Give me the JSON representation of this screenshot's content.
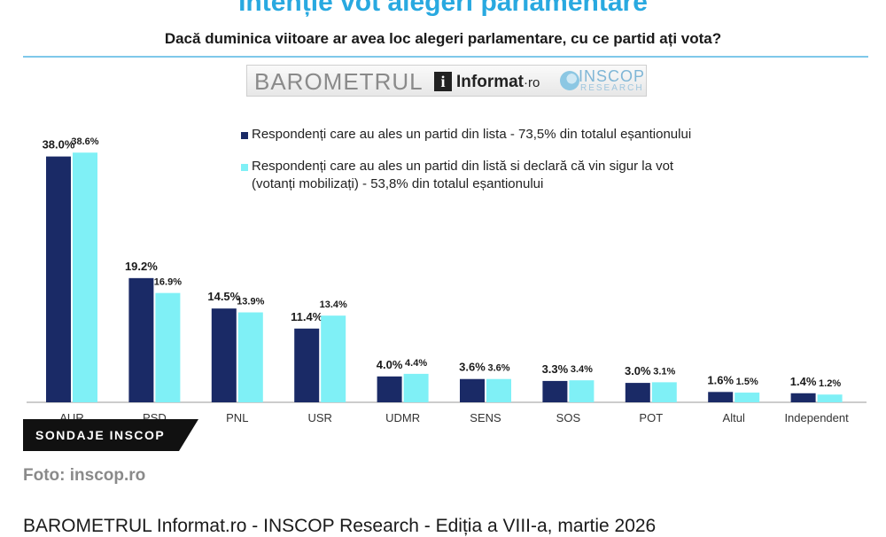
{
  "header": {
    "title": "Intenție vot alegeri parlamentare",
    "subtitle": "Dacă duminica viitoare ar avea loc alegeri parlamentare, cu ce partid ați vota?"
  },
  "logos": {
    "barometrul": "BAROMETRUL",
    "informat": "Informat",
    "informat_suffix": "·ro",
    "inscop": "INSCOP",
    "research": "RESEARCH"
  },
  "colors": {
    "series1": "#1a2a66",
    "series2": "#7ff0f6",
    "title": "#29a9e0"
  },
  "chart_data": {
    "type": "bar",
    "categories": [
      "AUR",
      "PSD",
      "PNL",
      "USR",
      "UDMR",
      "SENS",
      "SOS",
      "POT",
      "Altul",
      "Independent"
    ],
    "series": [
      {
        "name": "Respondenți care au ales un partid din lista - 73,5% din totalul eșantionului",
        "values": [
          38.0,
          19.2,
          14.5,
          11.4,
          4.0,
          3.6,
          3.3,
          3.0,
          1.6,
          1.4
        ],
        "labels": [
          "38.0%",
          "19.2%",
          "14.5%",
          "11.4%",
          "4.0%",
          "3.6%",
          "3.3%",
          "3.0%",
          "1.6%",
          "1.4%"
        ]
      },
      {
        "name": "Respondenți care au ales un partid din listă si declară că vin sigur la vot (votanți mobilizați) - 53,8% din totalul eșantionului",
        "values": [
          38.6,
          16.9,
          13.9,
          13.4,
          4.4,
          3.6,
          3.4,
          3.1,
          1.5,
          1.2
        ],
        "labels": [
          "38.6%",
          "16.9%",
          "13.9%",
          "13.4%",
          "4.4%",
          "3.6%",
          "3.4%",
          "3.1%",
          "1.5%",
          "1.2%"
        ]
      }
    ],
    "ylim": [
      0,
      40
    ],
    "legend": "top-right",
    "grid": false
  },
  "legend": {
    "line1": "Respondenți care au ales un partid din lista - 73,5% din totalul eșantionului",
    "line2a": "Respondenți care au ales un partid din listă si declară că vin sigur la vot",
    "line2b": "(votanți mobilizați) - 53,8% din totalul eșantionului"
  },
  "badge": "SONDAJE INSCOP",
  "credit": "Foto: inscop.ro",
  "caption": "BAROMETRUL Informat.ro - INSCOP Research - Ediția a VIII-a, martie 2026"
}
